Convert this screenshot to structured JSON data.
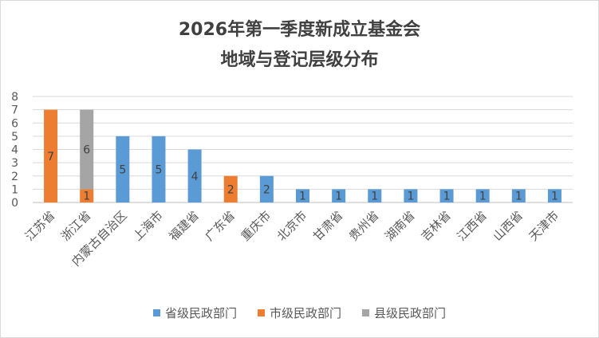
{
  "chart_data": {
    "type": "bar",
    "stacked": true,
    "title_lines": [
      "2026年第一季度新成立基金会",
      "地域与登记层级分布"
    ],
    "categories": [
      "江苏省",
      "浙江省",
      "内蒙古自治区",
      "上海市",
      "福建省",
      "广东省",
      "重庆市",
      "北京市",
      "甘肃省",
      "贵州省",
      "湖南省",
      "吉林省",
      "江西省",
      "山西省",
      "天津市"
    ],
    "series": [
      {
        "name": "省级民政部门",
        "color": "#5b9bd5",
        "values": [
          0,
          0,
          5,
          5,
          4,
          0,
          2,
          1,
          1,
          1,
          1,
          1,
          1,
          1,
          1
        ]
      },
      {
        "name": "市级民政部门",
        "color": "#ed7d31",
        "values": [
          7,
          1,
          0,
          0,
          0,
          2,
          0,
          0,
          0,
          0,
          0,
          0,
          0,
          0,
          0
        ]
      },
      {
        "name": "县级民政部门",
        "color": "#a5a5a5",
        "values": [
          0,
          6,
          0,
          0,
          0,
          0,
          0,
          0,
          0,
          0,
          0,
          0,
          0,
          0,
          0
        ]
      }
    ],
    "ylim": [
      0,
      8
    ],
    "yticks": [
      0,
      1,
      2,
      3,
      4,
      5,
      6,
      7,
      8
    ],
    "grid": true,
    "legend_position": "bottom"
  }
}
